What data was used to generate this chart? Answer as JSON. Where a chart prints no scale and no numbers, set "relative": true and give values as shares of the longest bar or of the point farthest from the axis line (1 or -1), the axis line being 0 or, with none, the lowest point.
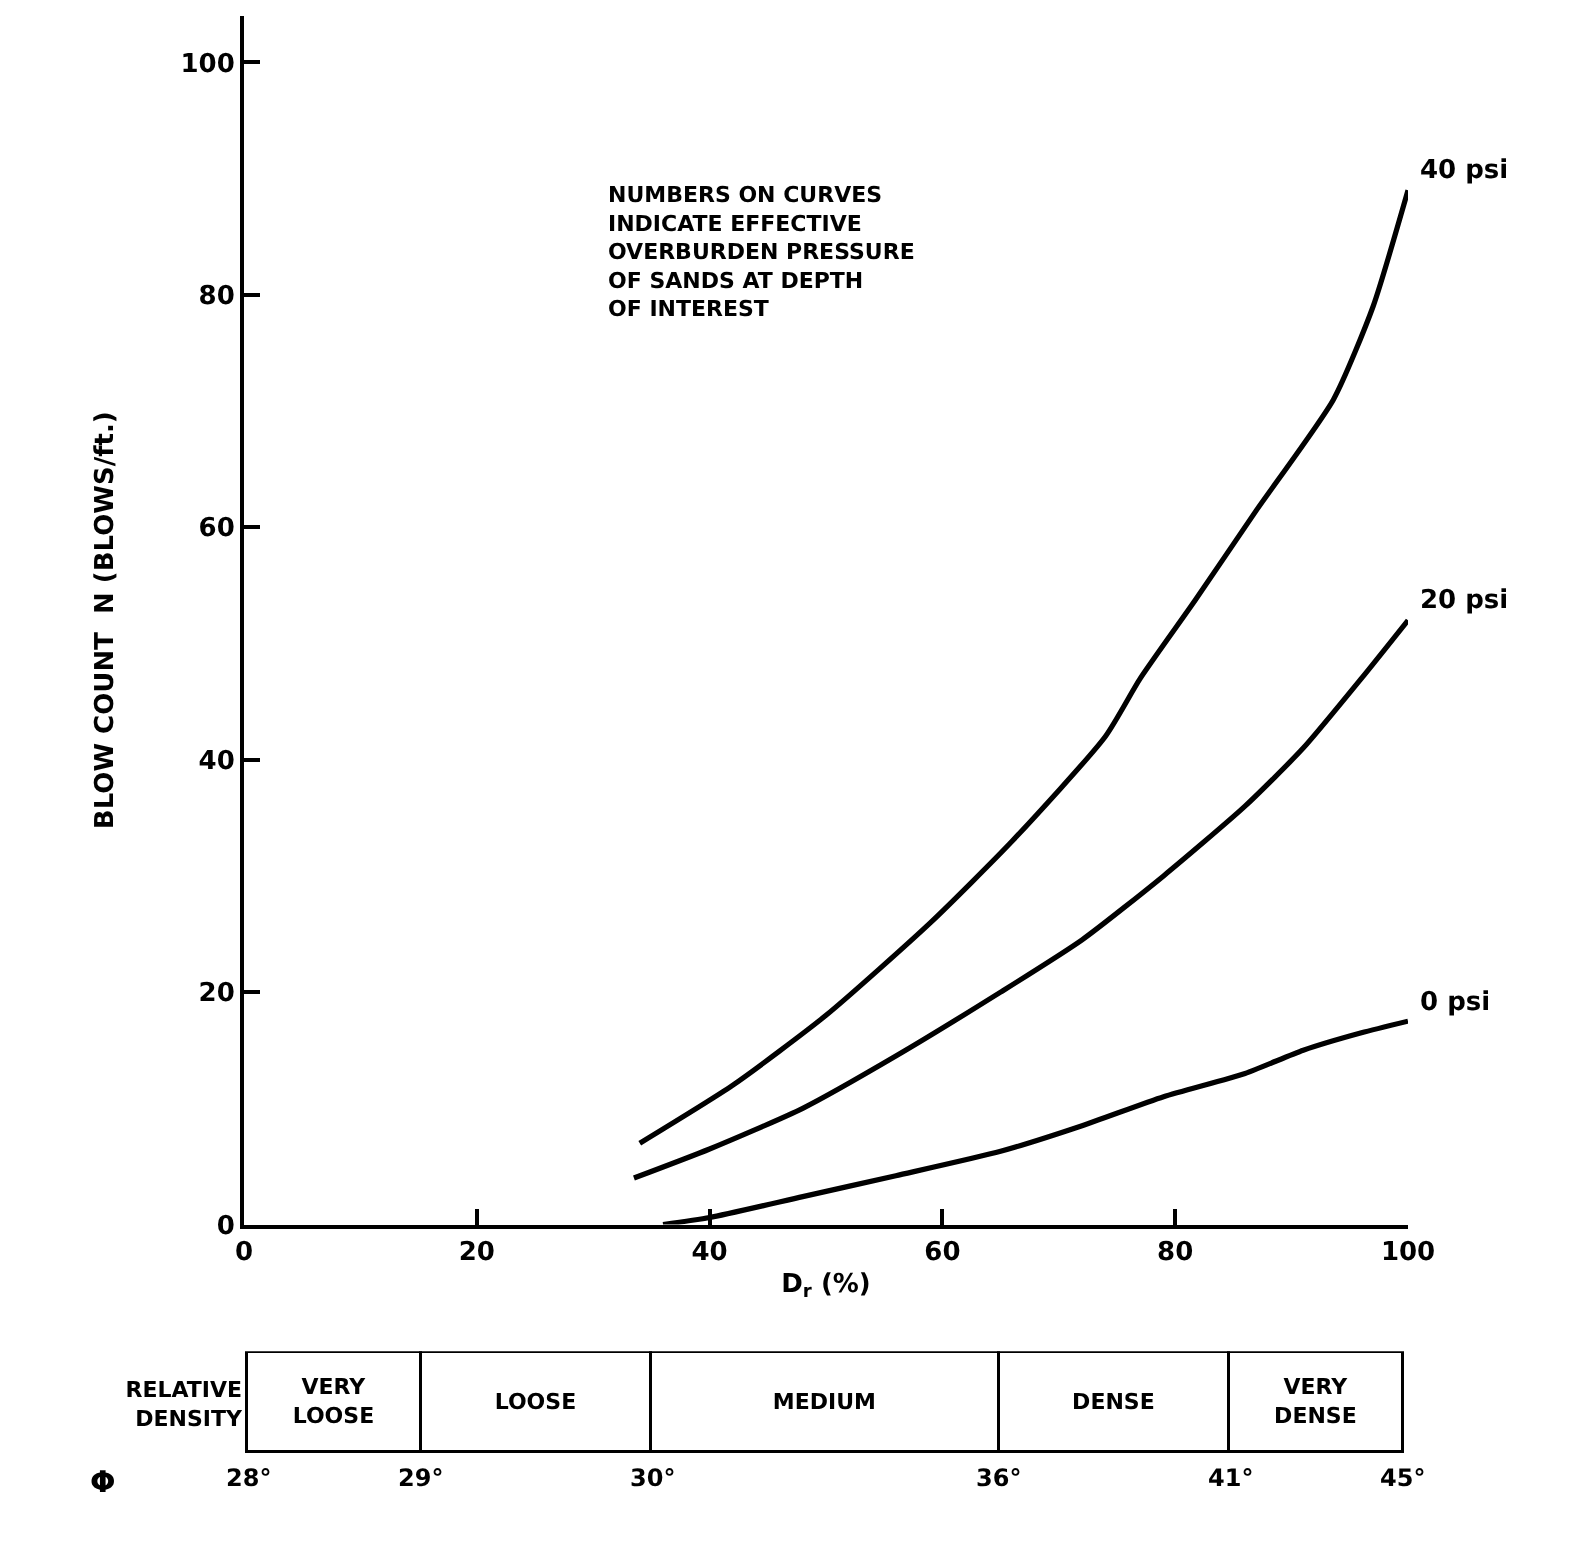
{
  "chart_data": [
    {
      "type": "line",
      "xlabel": "D$_{r}$ (%)",
      "ylabel": "BLOW COUNT  N (BLOWS/ft.)",
      "xlim": [
        0,
        100
      ],
      "ylim": [
        0,
        104
      ],
      "xticks": [
        0,
        20,
        40,
        60,
        80,
        100
      ],
      "yticks": [
        0,
        20,
        40,
        60,
        80,
        100
      ],
      "line_style": "solid",
      "annotations": [
        "NUMBERS ON CURVES\nINDICATE EFFECTIVE\nOVERBURDEN PRESSURE\nOF SANDS AT DEPTH\nOF INTEREST"
      ],
      "series": [
        {
          "name": "40 psi",
          "color": "#000000",
          "x": [
            34,
            42,
            50,
            59,
            66,
            74,
            77,
            81.7,
            87,
            93.6,
            97,
            100
          ],
          "values": [
            7,
            12,
            18,
            26,
            33,
            42,
            47,
            53.7,
            61.5,
            71,
            79,
            89
          ]
        },
        {
          "name": "20 psi",
          "color": "#000000",
          "x": [
            33.5,
            40,
            48,
            56,
            65,
            72,
            79,
            86,
            91,
            96,
            100
          ],
          "values": [
            4,
            6.5,
            10,
            14.5,
            20,
            24.5,
            30,
            36,
            41,
            47,
            52
          ]
        },
        {
          "name": "0 psi",
          "color": "#000000",
          "x": [
            36,
            40,
            48,
            56,
            65,
            72,
            79,
            86,
            91,
            96,
            100
          ],
          "values": [
            0,
            0.6,
            2.4,
            4.2,
            6.3,
            8.5,
            11,
            13,
            15,
            16.5,
            17.5
          ]
        }
      ]
    },
    {
      "type": "bar",
      "orientation": "horizontal",
      "stacked": true,
      "relative": true,
      "xlabel": "Φ",
      "categories": [
        "RELATIVE DENSITY"
      ],
      "annotations": [
        "28°",
        "29°",
        "30°",
        "36°",
        "41°",
        "45°"
      ],
      "series": [
        {
          "name": "VERY LOOSE",
          "color": "#ffffff",
          "values": [
            0.15
          ]
        },
        {
          "name": "LOOSE",
          "color": "#ffffff",
          "values": [
            0.2
          ]
        },
        {
          "name": "MEDIUM",
          "color": "#ffffff",
          "values": [
            0.3
          ]
        },
        {
          "name": "DENSE",
          "color": "#ffffff",
          "values": [
            0.2
          ]
        },
        {
          "name": "VERY DENSE",
          "color": "#ffffff",
          "values": [
            0.15
          ]
        }
      ]
    }
  ]
}
